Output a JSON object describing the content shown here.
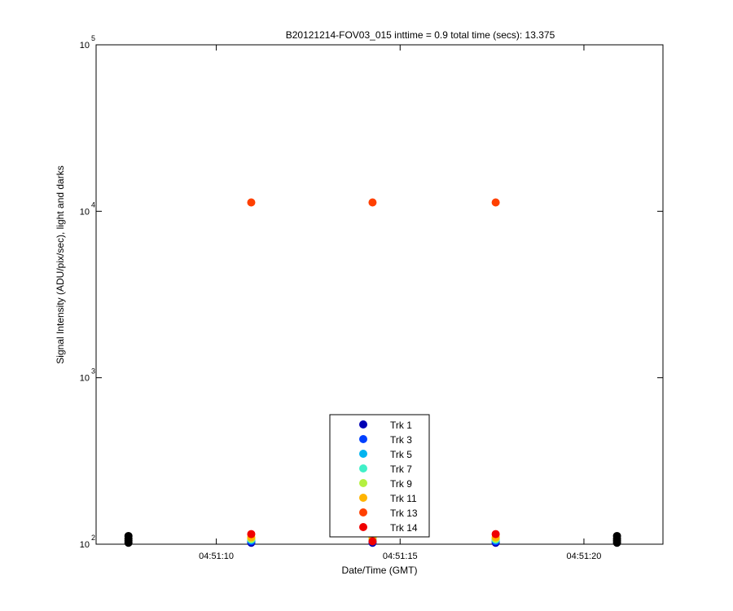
{
  "chart_data": {
    "type": "scatter",
    "title": "B20121214-FOV03_015 inttime = 0.9 total time (secs): 13.375",
    "xlabel": "Date/Time (GMT)",
    "ylabel": "Signal Intensity (ADU/pix/sec), light and darks",
    "log_y": true,
    "xlim": [
      6.73,
      22.15
    ],
    "xticks": [
      {
        "value": 10,
        "label": "04:51:10"
      },
      {
        "value": 15,
        "label": "04:51:15"
      },
      {
        "value": 20,
        "label": "04:51:20"
      }
    ],
    "ylim": [
      100,
      100000
    ],
    "yticks": [
      {
        "value": 100,
        "label": "10",
        "exponent": "2"
      },
      {
        "value": 1000,
        "label": "10",
        "exponent": "3"
      },
      {
        "value": 10000,
        "label": "10",
        "exponent": "4"
      },
      {
        "value": 100000,
        "label": "10",
        "exponent": "5"
      }
    ],
    "legend": "bottom",
    "series": [
      {
        "color": "#000000",
        "x": [
          7.61,
          7.61,
          7.61,
          7.61,
          20.9,
          20.9,
          20.9,
          20.9
        ],
        "values": [
          102,
          105,
          108,
          112,
          102,
          105,
          108,
          112
        ]
      },
      {
        "name": "Trk 1",
        "color": "#0000b4",
        "x": [
          10.95,
          14.25,
          17.6
        ],
        "values": [
          102,
          102,
          102
        ]
      },
      {
        "name": "Trk 3",
        "color": "#0040ff",
        "x": [
          10.95,
          14.25,
          17.6
        ],
        "values": [
          104,
          104,
          104
        ]
      },
      {
        "name": "Trk 5",
        "color": "#00b4f0",
        "x": [
          10.95,
          14.25,
          17.6
        ],
        "values": [
          106,
          106,
          106
        ]
      },
      {
        "name": "Trk 7",
        "color": "#40f0c8",
        "x": [
          10.95,
          14.25,
          17.6
        ],
        "values": [
          107,
          107,
          107
        ]
      },
      {
        "name": "Trk 9",
        "color": "#b4f040",
        "x": [
          10.95,
          14.25,
          17.6
        ],
        "values": [
          108,
          108,
          108
        ]
      },
      {
        "name": "Trk 11",
        "color": "#ffb400",
        "x": [
          10.95,
          14.25,
          17.6
        ],
        "values": [
          110,
          110,
          110
        ]
      },
      {
        "name": "Trk 13",
        "color": "#ff4000",
        "x": [
          10.95,
          14.25,
          17.6
        ],
        "values": [
          11300,
          11300,
          11300
        ]
      },
      {
        "name": "Trk 14",
        "color": "#f00000",
        "x": [
          10.95,
          14.25,
          17.6
        ],
        "values": [
          115,
          104,
          115
        ]
      }
    ]
  }
}
